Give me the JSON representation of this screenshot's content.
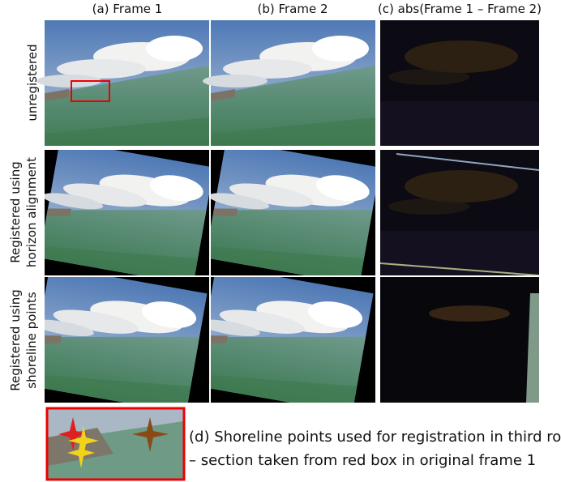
{
  "columns": [
    {
      "label": "(a) Frame 1"
    },
    {
      "label": "(b) Frame 2"
    },
    {
      "label": "(c) abs(Frame 1 – Frame 2)"
    }
  ],
  "rows": [
    {
      "lines": [
        "unregistered"
      ]
    },
    {
      "lines": [
        "Registered using",
        "horizon alignment"
      ]
    },
    {
      "lines": [
        "Registered using",
        "shoreline points"
      ]
    }
  ],
  "caption": {
    "lines": [
      "(d) Shoreline points used for registration in third row",
      "– section taken from red box in original frame 1"
    ]
  }
}
